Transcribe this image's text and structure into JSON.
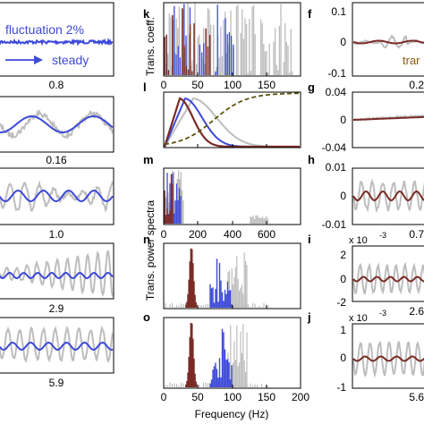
{
  "chart_data": {
    "type": "line",
    "colors": {
      "gray": "#bdbdbd",
      "blue": "#3d49d8",
      "dark_red": "#7a2b26",
      "olive_dashed": "#5c5510"
    },
    "left_column": {
      "panels": [
        {
          "id": "top",
          "annotation": "fluctuation 2%",
          "annotation2": "steady",
          "xlabel": "0.8",
          "series": [
            "blue"
          ]
        },
        {
          "id": "r2",
          "xlabel": "0.16",
          "series": [
            "gray",
            "blue"
          ]
        },
        {
          "id": "r3",
          "xlabel": "1.0",
          "series": [
            "gray",
            "blue"
          ]
        },
        {
          "id": "r4",
          "xlabel": "2.9",
          "series": [
            "gray",
            "blue"
          ]
        },
        {
          "id": "r5",
          "xlabel": "5.9",
          "series": [
            "gray",
            "blue"
          ]
        }
      ]
    },
    "middle_column": {
      "ylabel_top": "Trans. coeff.",
      "ylabel_bottom": "Trans. power spectra",
      "xlabel": "Frequency (Hz)",
      "x_ticks_3": [
        0,
        50,
        100,
        150
      ],
      "x_ticks_4": [
        0,
        200,
        400,
        600
      ],
      "x_ticks_5": [
        0,
        50,
        100,
        150,
        200
      ],
      "panels": [
        {
          "letter": "k",
          "xlim": [
            0,
            200
          ]
        },
        {
          "letter": "l",
          "xlim": [
            0,
            200
          ]
        },
        {
          "letter": "m",
          "xlim": [
            0,
            800
          ]
        },
        {
          "letter": "n",
          "xlim": [
            0,
            200
          ],
          "peaks": {
            "dark_red": 40,
            "blue": 80,
            "gray": 95
          }
        },
        {
          "letter": "o",
          "xlim": [
            0,
            200
          ],
          "peaks": {
            "dark_red": 40,
            "blue": 80,
            "gray": 95
          }
        }
      ]
    },
    "right_column": {
      "annotation": "trar",
      "panels": [
        {
          "letter": "f",
          "y_ticks": [
            "0.1",
            "0",
            "-0.1"
          ]
        },
        {
          "letter": "g",
          "y_ticks": [
            "0.04",
            "0",
            "-0.04"
          ],
          "xlabel": "0.2"
        },
        {
          "letter": "h",
          "y_ticks": [
            "0.01",
            "0",
            "-0.01"
          ],
          "xlabel": "0.7"
        },
        {
          "letter": "i",
          "exponent": "x 10",
          "exponent_power": "-3",
          "y_ticks": [
            "2",
            "0",
            "-2"
          ],
          "xlabel": "2.6"
        },
        {
          "letter": "j",
          "exponent": "x 10",
          "exponent_power": "-3",
          "y_ticks": [
            "1",
            "0",
            "-1"
          ],
          "xlabel": "5.6"
        }
      ]
    }
  }
}
